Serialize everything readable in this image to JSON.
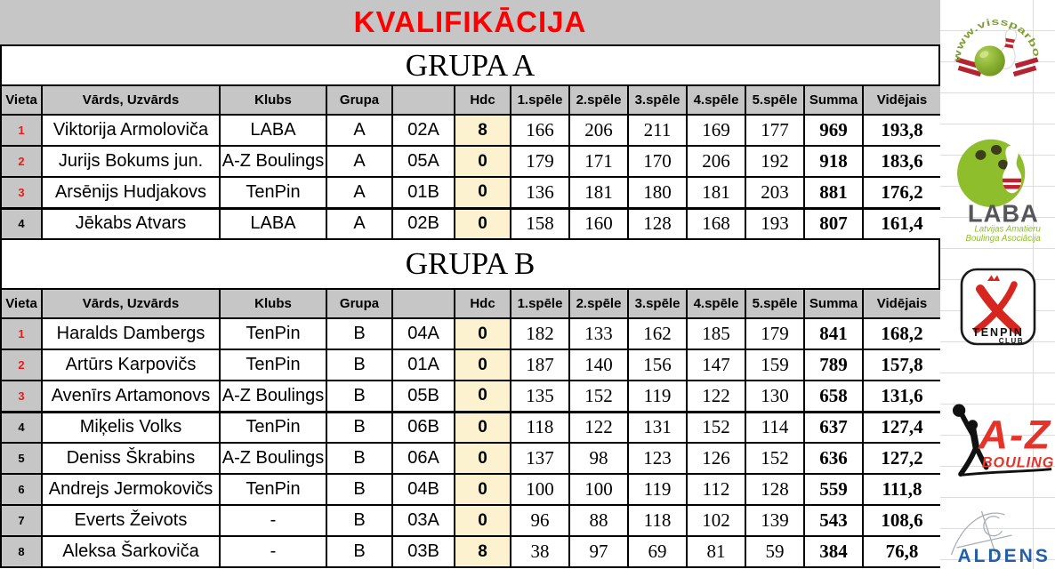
{
  "title": "KVALIFIKĀCIJA",
  "columns": [
    "Vieta",
    "Vārds, Uzvārds",
    "Klubs",
    "Grupa",
    "",
    "Hdc",
    "1.spēle",
    "2.spēle",
    "3.spēle",
    "4.spēle",
    "5.spēle",
    "Summa",
    "Vidējais"
  ],
  "groups": [
    {
      "name": "GRUPA A",
      "rows": [
        {
          "vieta": "1",
          "name": "Viktorija Armoloviča",
          "klubs": "LABA",
          "grupa": "A",
          "lane": "02A",
          "hdc": "8",
          "games": [
            "166",
            "206",
            "211",
            "169",
            "177"
          ],
          "summa": "969",
          "videjais": "193,8",
          "rank_red": true,
          "cut": false
        },
        {
          "vieta": "2",
          "name": "Jurijs Bokums jun.",
          "klubs": "A-Z Boulings",
          "grupa": "A",
          "lane": "05A",
          "hdc": "0",
          "games": [
            "179",
            "171",
            "170",
            "206",
            "192"
          ],
          "summa": "918",
          "videjais": "183,6",
          "rank_red": true,
          "cut": false
        },
        {
          "vieta": "3",
          "name": "Arsēnijs Hudjakovs",
          "klubs": "TenPin",
          "grupa": "A",
          "lane": "01B",
          "hdc": "0",
          "games": [
            "136",
            "181",
            "180",
            "181",
            "203"
          ],
          "summa": "881",
          "videjais": "176,2",
          "rank_red": true,
          "cut": true
        },
        {
          "vieta": "4",
          "name": "Jēkabs Atvars",
          "klubs": "LABA",
          "grupa": "A",
          "lane": "02B",
          "hdc": "0",
          "games": [
            "158",
            "160",
            "128",
            "168",
            "193"
          ],
          "summa": "807",
          "videjais": "161,4",
          "rank_red": false,
          "cut": false
        }
      ]
    },
    {
      "name": "GRUPA B",
      "rows": [
        {
          "vieta": "1",
          "name": "Haralds Dambergs",
          "klubs": "TenPin",
          "grupa": "B",
          "lane": "04A",
          "hdc": "0",
          "games": [
            "182",
            "133",
            "162",
            "185",
            "179"
          ],
          "summa": "841",
          "videjais": "168,2",
          "rank_red": true,
          "cut": false
        },
        {
          "vieta": "2",
          "name": "Artūrs Karpovičs",
          "klubs": "TenPin",
          "grupa": "B",
          "lane": "01A",
          "hdc": "0",
          "games": [
            "187",
            "140",
            "156",
            "147",
            "159"
          ],
          "summa": "789",
          "videjais": "157,8",
          "rank_red": true,
          "cut": false
        },
        {
          "vieta": "3",
          "name": "Avenīrs Artamonovs",
          "klubs": "A-Z Boulings",
          "grupa": "B",
          "lane": "05B",
          "hdc": "0",
          "games": [
            "135",
            "152",
            "119",
            "122",
            "130"
          ],
          "summa": "658",
          "videjais": "131,6",
          "rank_red": true,
          "cut": true
        },
        {
          "vieta": "4",
          "name": "Miķelis Volks",
          "klubs": "TenPin",
          "grupa": "B",
          "lane": "06B",
          "hdc": "0",
          "games": [
            "118",
            "122",
            "131",
            "152",
            "114"
          ],
          "summa": "637",
          "videjais": "127,4",
          "rank_red": false,
          "cut": false
        },
        {
          "vieta": "5",
          "name": "Deniss Škrabins",
          "klubs": "A-Z Boulings",
          "grupa": "B",
          "lane": "06A",
          "hdc": "0",
          "games": [
            "137",
            "98",
            "123",
            "126",
            "152"
          ],
          "summa": "636",
          "videjais": "127,2",
          "rank_red": false,
          "cut": false
        },
        {
          "vieta": "6",
          "name": "Andrejs Jermokovičs",
          "klubs": "TenPin",
          "grupa": "B",
          "lane": "04B",
          "hdc": "0",
          "games": [
            "100",
            "100",
            "119",
            "112",
            "128"
          ],
          "summa": "559",
          "videjais": "111,8",
          "rank_red": false,
          "cut": false
        },
        {
          "vieta": "7",
          "name": "Everts Žeivots",
          "klubs": "-",
          "grupa": "B",
          "lane": "03A",
          "hdc": "0",
          "games": [
            "96",
            "88",
            "118",
            "102",
            "139"
          ],
          "summa": "543",
          "videjais": "108,6",
          "rank_red": false,
          "cut": false
        },
        {
          "vieta": "8",
          "name": "Aleksa Šarkoviča",
          "klubs": "-",
          "grupa": "B",
          "lane": "03B",
          "hdc": "8",
          "games": [
            "38",
            "97",
            "69",
            "81",
            "59"
          ],
          "summa": "384",
          "videjais": "76,8",
          "rank_red": false,
          "cut": false
        }
      ]
    }
  ],
  "sidebar": {
    "logos": {
      "visspar": {
        "circle_text": "www.vissparboulingu.lv"
      },
      "laba": {
        "title": "LABA",
        "subtitle_line1": "Latvijas Amatieru",
        "subtitle_line2": "Boulinga Asociācija"
      },
      "tenpin": {
        "title": "TENPIN",
        "subtitle": "CLUB"
      },
      "az": {
        "title": "A-Z",
        "subtitle": "BOULINGS"
      },
      "aldens": {
        "title": "ALDENS"
      }
    }
  },
  "colors": {
    "title_red": "#ff0000",
    "header_gray": "#c6c6c6",
    "hdc_cream": "#fcf2cf",
    "laba_green": "#8fbe2c",
    "tenpin_red": "#d6261f",
    "az_red": "#e63329",
    "aldens_blue": "#2160a8"
  }
}
